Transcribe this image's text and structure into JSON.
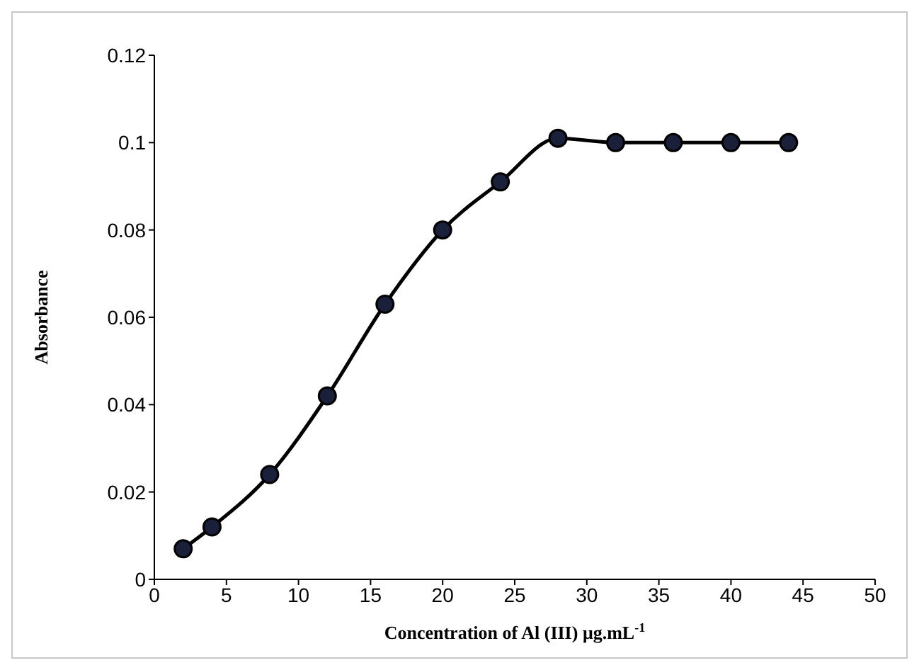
{
  "chart_data": {
    "type": "line",
    "xlabel": "Concentration of Al (III) μg.mL$^{-1}$",
    "ylabel": "Absorbance",
    "x": [
      2,
      4,
      8,
      12,
      16,
      20,
      24,
      28,
      32,
      36,
      40,
      44
    ],
    "series": [
      {
        "color": "#000000",
        "values": [
          0.007,
          0.012,
          0.024,
          0.042,
          0.063,
          0.08,
          0.091,
          0.101,
          0.1,
          0.1,
          0.1,
          0.1
        ]
      }
    ],
    "xlim": [
      0,
      50
    ],
    "xticks": [
      0,
      5,
      10,
      15,
      20,
      25,
      30,
      35,
      40,
      45,
      50
    ],
    "ylim": [
      0,
      0.12
    ],
    "yticks": [
      0,
      0.02,
      0.04,
      0.06,
      0.08,
      0.1,
      0.12
    ],
    "grid": false,
    "legend": false,
    "marker": "circle",
    "line_style": "solid"
  }
}
